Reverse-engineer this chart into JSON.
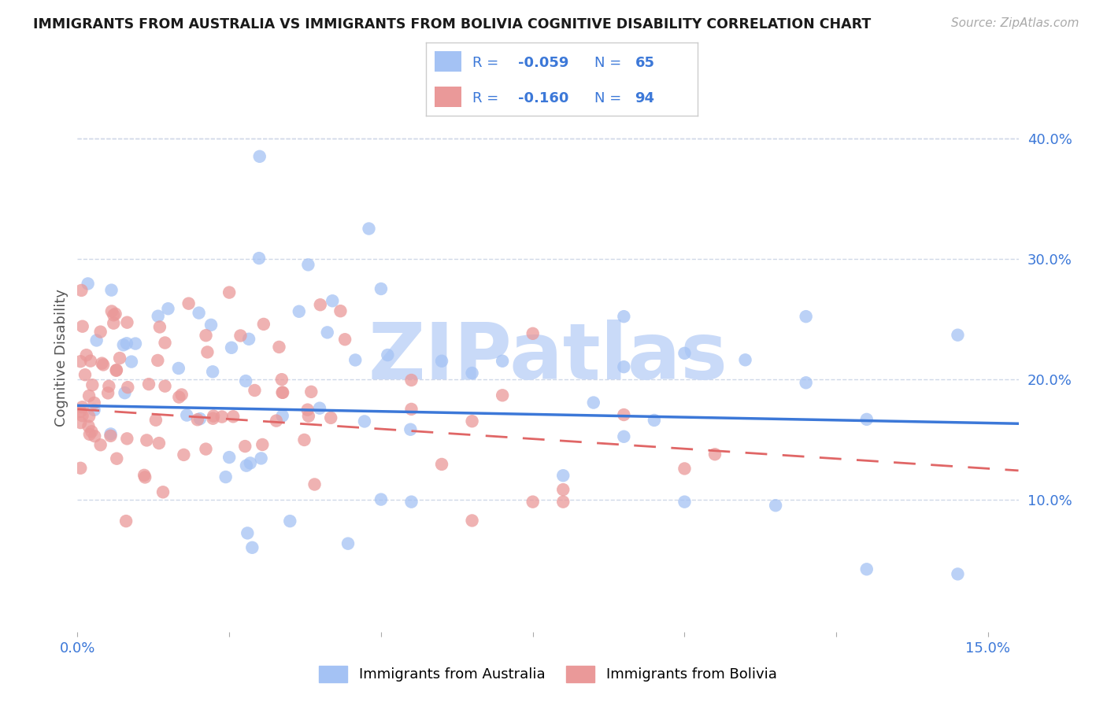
{
  "title": "IMMIGRANTS FROM AUSTRALIA VS IMMIGRANTS FROM BOLIVIA COGNITIVE DISABILITY CORRELATION CHART",
  "source": "Source: ZipAtlas.com",
  "ylabel": "Cognitive Disability",
  "xlim": [
    0.0,
    0.155
  ],
  "ylim": [
    -0.01,
    0.445
  ],
  "y_ticks_right": [
    0.1,
    0.2,
    0.3,
    0.4
  ],
  "y_tick_labels_right": [
    "10.0%",
    "20.0%",
    "30.0%",
    "40.0%"
  ],
  "x_ticks": [
    0.0,
    0.025,
    0.05,
    0.075,
    0.1,
    0.125,
    0.15
  ],
  "x_tick_labels": [
    "0.0%",
    "",
    "",
    "",
    "",
    "",
    "15.0%"
  ],
  "legend_r_australia": "-0.059",
  "legend_n_australia": "65",
  "legend_r_bolivia": "-0.160",
  "legend_n_bolivia": "94",
  "australia_color": "#a4c2f4",
  "bolivia_color": "#ea9999",
  "trend_australia_color": "#3c78d8",
  "trend_bolivia_color": "#e06666",
  "watermark_text": "ZIPatlas",
  "watermark_color": "#c9daf8",
  "background_color": "#ffffff",
  "grid_color": "#d0d8e8",
  "legend_text_color": "#3c78d8",
  "axis_label_color": "#3c78d8",
  "aus_trend_y0": 0.178,
  "aus_trend_y1": 0.163,
  "bol_trend_y0": 0.175,
  "bol_trend_y1": 0.124
}
